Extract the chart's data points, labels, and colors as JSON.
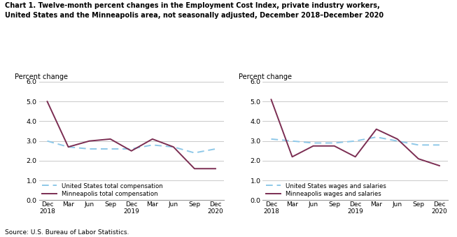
{
  "title": "Chart 1. Twelve-month percent changes in the Employment Cost Index, private industry workers,\nUnited States and the Minneapolis area, not seasonally adjusted, December 2018–December 2020",
  "ylabel": "Percent change",
  "source": "Source: U.S. Bureau of Labor Statistics.",
  "x_labels": [
    "Dec\n2018",
    "Mar",
    "Jun",
    "Sep",
    "Dec\n2019",
    "Mar",
    "Jun",
    "Sep",
    "Dec\n2020"
  ],
  "ylim": [
    0.0,
    6.0
  ],
  "yticks": [
    0.0,
    1.0,
    2.0,
    3.0,
    4.0,
    5.0,
    6.0
  ],
  "chart1": {
    "us_total_comp": [
      3.0,
      2.7,
      2.6,
      2.6,
      2.6,
      2.8,
      2.7,
      2.4,
      2.6
    ],
    "mpls_total_comp": [
      5.0,
      2.7,
      3.0,
      3.1,
      2.5,
      3.1,
      2.7,
      1.6,
      1.6
    ],
    "us_label": "United States total compensation",
    "mpls_label": "Minneapolis total compensation"
  },
  "chart2": {
    "us_wages": [
      3.1,
      3.0,
      2.9,
      2.9,
      3.0,
      3.2,
      3.0,
      2.8,
      2.8
    ],
    "mpls_wages": [
      5.1,
      2.2,
      2.75,
      2.75,
      2.2,
      3.6,
      3.1,
      2.1,
      1.75
    ],
    "us_label": "United States wages and salaries",
    "mpls_label": "Minneapolis wages and salaries"
  },
  "us_color": "#8ec8e8",
  "mpls_color": "#7B2D52",
  "us_linestyle": "dashed",
  "mpls_linestyle": "solid",
  "linewidth": 1.4,
  "background_color": "#ffffff",
  "grid_color": "#c0c0c0"
}
